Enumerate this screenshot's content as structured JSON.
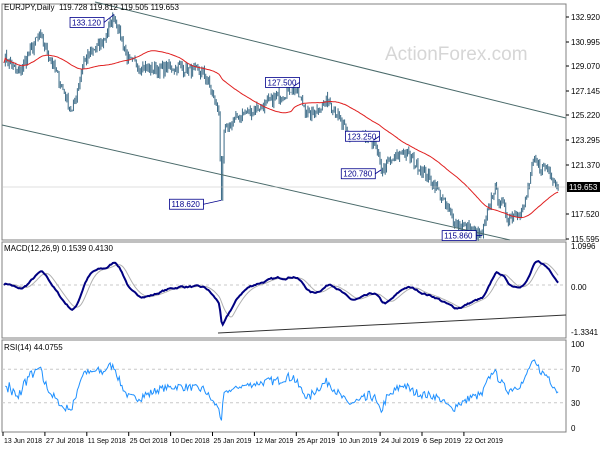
{
  "header": {
    "symbol": "EURJPY,Daily",
    "ohlc": "119.728 119.812 119.505 119.653"
  },
  "watermark": "ActionForex.com",
  "chart_data": {
    "type": "line",
    "title": "EURJPY,Daily",
    "price_axis": {
      "ticks": [
        "132.920",
        "130.995",
        "129.070",
        "127.145",
        "125.220",
        "123.295",
        "121.370",
        "117.520",
        "115.595"
      ],
      "range": [
        115.595,
        132.92
      ]
    },
    "current_price": "119.653",
    "annotations": [
      "133.120",
      "127.500",
      "118.620",
      "123.250",
      "120.780",
      "115.860"
    ],
    "x_labels": [
      "13 Jun 2018",
      "27 Jul 2018",
      "11 Sep 2018",
      "25 Oct 2018",
      "10 Dec 2018",
      "25 Jan 2019",
      "12 Mar 2019",
      "25 Apr 2019",
      "10 Jun 2019",
      "24 Jul 2019",
      "6 Sep 2019",
      "22 Oct 2019"
    ],
    "price_anchors": [
      [
        0,
        129.8
      ],
      [
        11,
        128.5
      ],
      [
        27,
        131.5
      ],
      [
        34,
        130
      ],
      [
        52,
        125.5
      ],
      [
        61,
        129.5
      ],
      [
        76,
        131
      ],
      [
        84,
        133.1
      ],
      [
        95,
        129.5
      ],
      [
        111,
        128.8
      ],
      [
        134,
        129
      ],
      [
        153,
        128.5
      ],
      [
        164,
        125.5
      ],
      [
        166,
        118.6
      ],
      [
        168,
        124
      ],
      [
        179,
        125.2
      ],
      [
        198,
        126
      ],
      [
        221,
        127.5
      ],
      [
        233,
        125.2
      ],
      [
        248,
        126.5
      ],
      [
        263,
        123.5
      ],
      [
        282,
        123.3
      ],
      [
        288,
        121
      ],
      [
        305,
        122.5
      ],
      [
        328,
        120
      ],
      [
        343,
        117
      ],
      [
        365,
        115.86
      ],
      [
        374,
        119.5
      ],
      [
        385,
        117.3
      ],
      [
        397,
        118
      ],
      [
        404,
        121.5
      ],
      [
        416,
        121
      ],
      [
        423,
        119.65
      ]
    ],
    "ma_period": 55,
    "macd": {
      "label": "MACD(12,26,9) 0.1539 0.4130",
      "ticks": [
        "1.0996",
        "0.00",
        "-1.3341"
      ],
      "range": [
        -1.3341,
        1.0996
      ]
    },
    "rsi": {
      "label": "RSI(14) 44.0755",
      "ticks": [
        "100",
        "70",
        "30",
        "0"
      ],
      "range": [
        0,
        100
      ]
    },
    "colors": {
      "bars": "#3a6a86",
      "ma": "#e02020",
      "macd": "#000080",
      "signal": "#b0b0b0",
      "rsi": "#1e90ff",
      "label": "#00008b"
    }
  }
}
